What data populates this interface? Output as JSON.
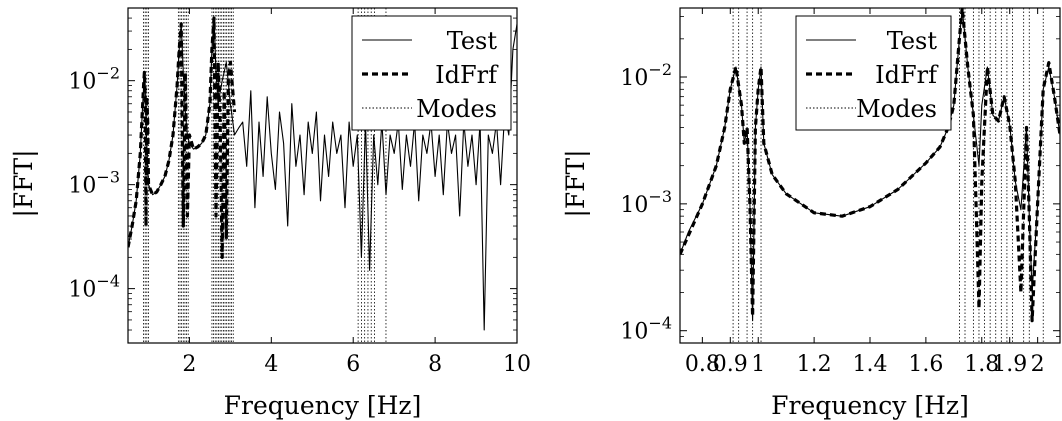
{
  "chart_data": [
    {
      "type": "line",
      "xlabel": "Frequency [Hz]",
      "ylabel": "|FFT|",
      "xlim": [
        0.5,
        10
      ],
      "ylim": [
        3e-05,
        0.05
      ],
      "yscale": "log",
      "grid": false,
      "legend_position": "top-right",
      "x_ticks": [
        2,
        4,
        6,
        8,
        10
      ],
      "x_tick_labels": [
        "2",
        "4",
        "6",
        "8",
        "10"
      ],
      "y_ticks": [
        0.0001,
        0.001,
        0.01
      ],
      "y_tick_labels": [
        "10−4",
        "10−3",
        "10−2"
      ],
      "legend": [
        {
          "label": "Test",
          "style": "solid"
        },
        {
          "label": "IdFrf",
          "style": "dashed"
        },
        {
          "label": "Modes",
          "style": "dotted"
        }
      ],
      "modes": [
        0.88,
        0.92,
        0.96,
        1.0,
        1.73,
        1.77,
        1.81,
        1.85,
        1.89,
        1.93,
        1.97,
        2.55,
        2.59,
        2.63,
        2.67,
        2.71,
        2.75,
        2.79,
        2.83,
        2.87,
        2.91,
        2.95,
        2.99,
        3.03,
        3.07,
        6.12,
        6.2,
        6.28,
        6.36,
        6.44,
        6.52,
        6.8
      ],
      "series": [
        {
          "name": "Test",
          "style": "solid",
          "x": [
            0.5,
            0.6,
            0.7,
            0.8,
            0.85,
            0.9,
            0.93,
            0.95,
            1.0,
            1.1,
            1.2,
            1.3,
            1.4,
            1.5,
            1.6,
            1.7,
            1.75,
            1.8,
            1.85,
            1.9,
            1.95,
            2.0,
            2.1,
            2.2,
            2.3,
            2.4,
            2.5,
            2.55,
            2.6,
            2.65,
            2.7,
            2.8,
            2.9,
            3.0,
            3.1,
            3.2,
            3.3,
            3.4,
            3.5,
            3.6,
            3.7,
            3.8,
            3.9,
            4.0,
            4.1,
            4.2,
            4.3,
            4.4,
            4.5,
            4.6,
            4.7,
            4.8,
            4.9,
            5.0,
            5.1,
            5.2,
            5.3,
            5.4,
            5.5,
            5.6,
            5.7,
            5.8,
            5.9,
            6.0,
            6.1,
            6.2,
            6.3,
            6.4,
            6.5,
            6.6,
            6.7,
            6.8,
            6.9,
            7.0,
            7.1,
            7.2,
            7.3,
            7.4,
            7.5,
            7.6,
            7.7,
            7.8,
            7.9,
            8.0,
            8.1,
            8.2,
            8.3,
            8.4,
            8.5,
            8.6,
            8.7,
            8.8,
            8.9,
            9.0,
            9.1,
            9.2,
            9.3,
            9.4,
            9.5,
            9.6,
            9.7,
            9.8,
            9.9,
            10.0
          ],
          "y": [
            0.00025,
            0.0004,
            0.0007,
            0.002,
            0.005,
            0.012,
            0.008,
            0.003,
            0.001,
            0.0008,
            0.00085,
            0.001,
            0.0012,
            0.0017,
            0.003,
            0.009,
            0.02,
            0.035,
            0.012,
            0.005,
            0.003,
            0.0025,
            0.0022,
            0.0023,
            0.0025,
            0.003,
            0.006,
            0.02,
            0.04,
            0.012,
            0.006,
            0.01,
            0.015,
            0.006,
            0.003,
            0.0035,
            0.004,
            0.0015,
            0.008,
            0.0006,
            0.004,
            0.0012,
            0.007,
            0.002,
            0.0009,
            0.005,
            0.0025,
            0.0004,
            0.006,
            0.0015,
            0.003,
            0.0008,
            0.004,
            0.002,
            0.005,
            0.0007,
            0.003,
            0.0012,
            0.004,
            0.002,
            0.003,
            0.0006,
            0.004,
            0.0015,
            0.003,
            0.0002,
            0.004,
            0.00015,
            0.003,
            0.001,
            0.004,
            0.0008,
            0.003,
            0.002,
            0.004,
            0.0009,
            0.003,
            0.0015,
            0.004,
            0.0007,
            0.003,
            0.002,
            0.004,
            0.0012,
            0.003,
            0.0008,
            0.004,
            0.002,
            0.003,
            0.0005,
            0.004,
            0.0015,
            0.003,
            0.001,
            0.004,
            4e-05,
            0.003,
            0.002,
            0.004,
            0.001,
            0.005,
            0.003,
            0.02,
            0.035
          ]
        },
        {
          "name": "IdFrf",
          "style": "dashed",
          "x": [
            0.5,
            0.6,
            0.7,
            0.8,
            0.85,
            0.88,
            0.9,
            0.92,
            0.94,
            0.96,
            0.98,
            1.0,
            1.1,
            1.2,
            1.3,
            1.4,
            1.5,
            1.6,
            1.7,
            1.75,
            1.8,
            1.85,
            1.9,
            1.95,
            2.0,
            2.1,
            2.2,
            2.3,
            2.4,
            2.5,
            2.55,
            2.6,
            2.65,
            2.7,
            2.75,
            2.8,
            2.85,
            2.9,
            2.95,
            3.0,
            3.1
          ],
          "y": [
            0.00025,
            0.0004,
            0.0007,
            0.002,
            0.005,
            0.009,
            0.012,
            0.007,
            0.0004,
            0.007,
            0.004,
            0.001,
            0.0008,
            0.00085,
            0.001,
            0.0012,
            0.0017,
            0.003,
            0.009,
            0.02,
            0.035,
            0.0004,
            0.012,
            0.0005,
            0.003,
            0.0022,
            0.0023,
            0.0025,
            0.003,
            0.006,
            0.02,
            0.04,
            0.0005,
            0.015,
            0.004,
            0.0002,
            0.008,
            0.0003,
            0.01,
            0.015,
            0.005
          ]
        }
      ]
    },
    {
      "type": "line",
      "xlabel": "Frequency [Hz]",
      "ylabel": "|FFT|",
      "xlim": [
        0.72,
        2.08
      ],
      "ylim": [
        8e-05,
        0.035
      ],
      "yscale": "log",
      "grid": false,
      "legend_position": "top-left",
      "x_ticks": [
        0.8,
        0.9,
        1.0,
        1.2,
        1.4,
        1.6,
        1.8,
        1.9,
        2.0
      ],
      "x_tick_labels": [
        "0.8",
        "0.9",
        "1",
        "1.2",
        "1.4",
        "1.6",
        "1.8",
        "1.9",
        "2"
      ],
      "y_ticks": [
        0.0001,
        0.001,
        0.01
      ],
      "y_tick_labels": [
        "10−4",
        "10−3",
        "10−2"
      ],
      "legend": [
        {
          "label": "Test",
          "style": "solid"
        },
        {
          "label": "IdFrf",
          "style": "dashed"
        },
        {
          "label": "Modes",
          "style": "dotted"
        }
      ],
      "modes": [
        0.91,
        0.93,
        0.96,
        0.98,
        1.01,
        1.72,
        1.74,
        1.77,
        1.79,
        1.81,
        1.83,
        1.85,
        1.87,
        1.89,
        1.91,
        1.95,
        1.97,
        2.02
      ],
      "series": [
        {
          "name": "Test",
          "style": "solid",
          "x": [
            0.72,
            0.75,
            0.8,
            0.85,
            0.88,
            0.9,
            0.92,
            0.94,
            0.95,
            0.96,
            0.97,
            0.98,
            0.99,
            1.0,
            1.01,
            1.02,
            1.05,
            1.1,
            1.2,
            1.3,
            1.4,
            1.5,
            1.6,
            1.65,
            1.68,
            1.7,
            1.72,
            1.73,
            1.75,
            1.77,
            1.79,
            1.8,
            1.82,
            1.84,
            1.86,
            1.88,
            1.9,
            1.92,
            1.94,
            1.96,
            1.97,
            1.98,
            2.0,
            2.02,
            2.04,
            2.06,
            2.08
          ],
          "y": [
            0.0004,
            0.0006,
            0.001,
            0.002,
            0.004,
            0.008,
            0.012,
            0.006,
            0.003,
            0.004,
            0.001,
            0.00012,
            0.004,
            0.008,
            0.012,
            0.003,
            0.0017,
            0.0012,
            0.00085,
            0.0008,
            0.00095,
            0.0013,
            0.0021,
            0.0028,
            0.004,
            0.006,
            0.02,
            0.035,
            0.012,
            0.005,
            0.002,
            0.006,
            0.012,
            0.005,
            0.0045,
            0.007,
            0.0042,
            0.0015,
            0.0009,
            0.004,
            0.0008,
            0.0002,
            0.001,
            0.008,
            0.012,
            0.007,
            0.0035
          ]
        },
        {
          "name": "IdFrf",
          "style": "dashed",
          "x": [
            0.72,
            0.8,
            0.85,
            0.88,
            0.9,
            0.92,
            0.94,
            0.95,
            0.96,
            0.97,
            0.98,
            0.99,
            1.0,
            1.01,
            1.02,
            1.05,
            1.1,
            1.2,
            1.3,
            1.4,
            1.5,
            1.6,
            1.65,
            1.68,
            1.7,
            1.72,
            1.73,
            1.75,
            1.77,
            1.78,
            1.79,
            1.8,
            1.82,
            1.84,
            1.86,
            1.88,
            1.9,
            1.92,
            1.94,
            1.96,
            1.97,
            1.98,
            2.0,
            2.02,
            2.04,
            2.06,
            2.08
          ],
          "y": [
            0.0004,
            0.001,
            0.002,
            0.004,
            0.008,
            0.012,
            0.006,
            0.003,
            0.004,
            0.001,
            0.00013,
            0.004,
            0.008,
            0.012,
            0.003,
            0.0017,
            0.0012,
            0.00085,
            0.0008,
            0.00095,
            0.0013,
            0.0021,
            0.0028,
            0.004,
            0.006,
            0.02,
            0.035,
            0.012,
            0.005,
            0.0009,
            0.00015,
            0.0015,
            0.012,
            0.005,
            0.0045,
            0.007,
            0.0042,
            0.0015,
            0.0002,
            0.004,
            0.0008,
            0.00012,
            0.001,
            0.008,
            0.013,
            0.007,
            0.0035
          ]
        }
      ]
    }
  ]
}
